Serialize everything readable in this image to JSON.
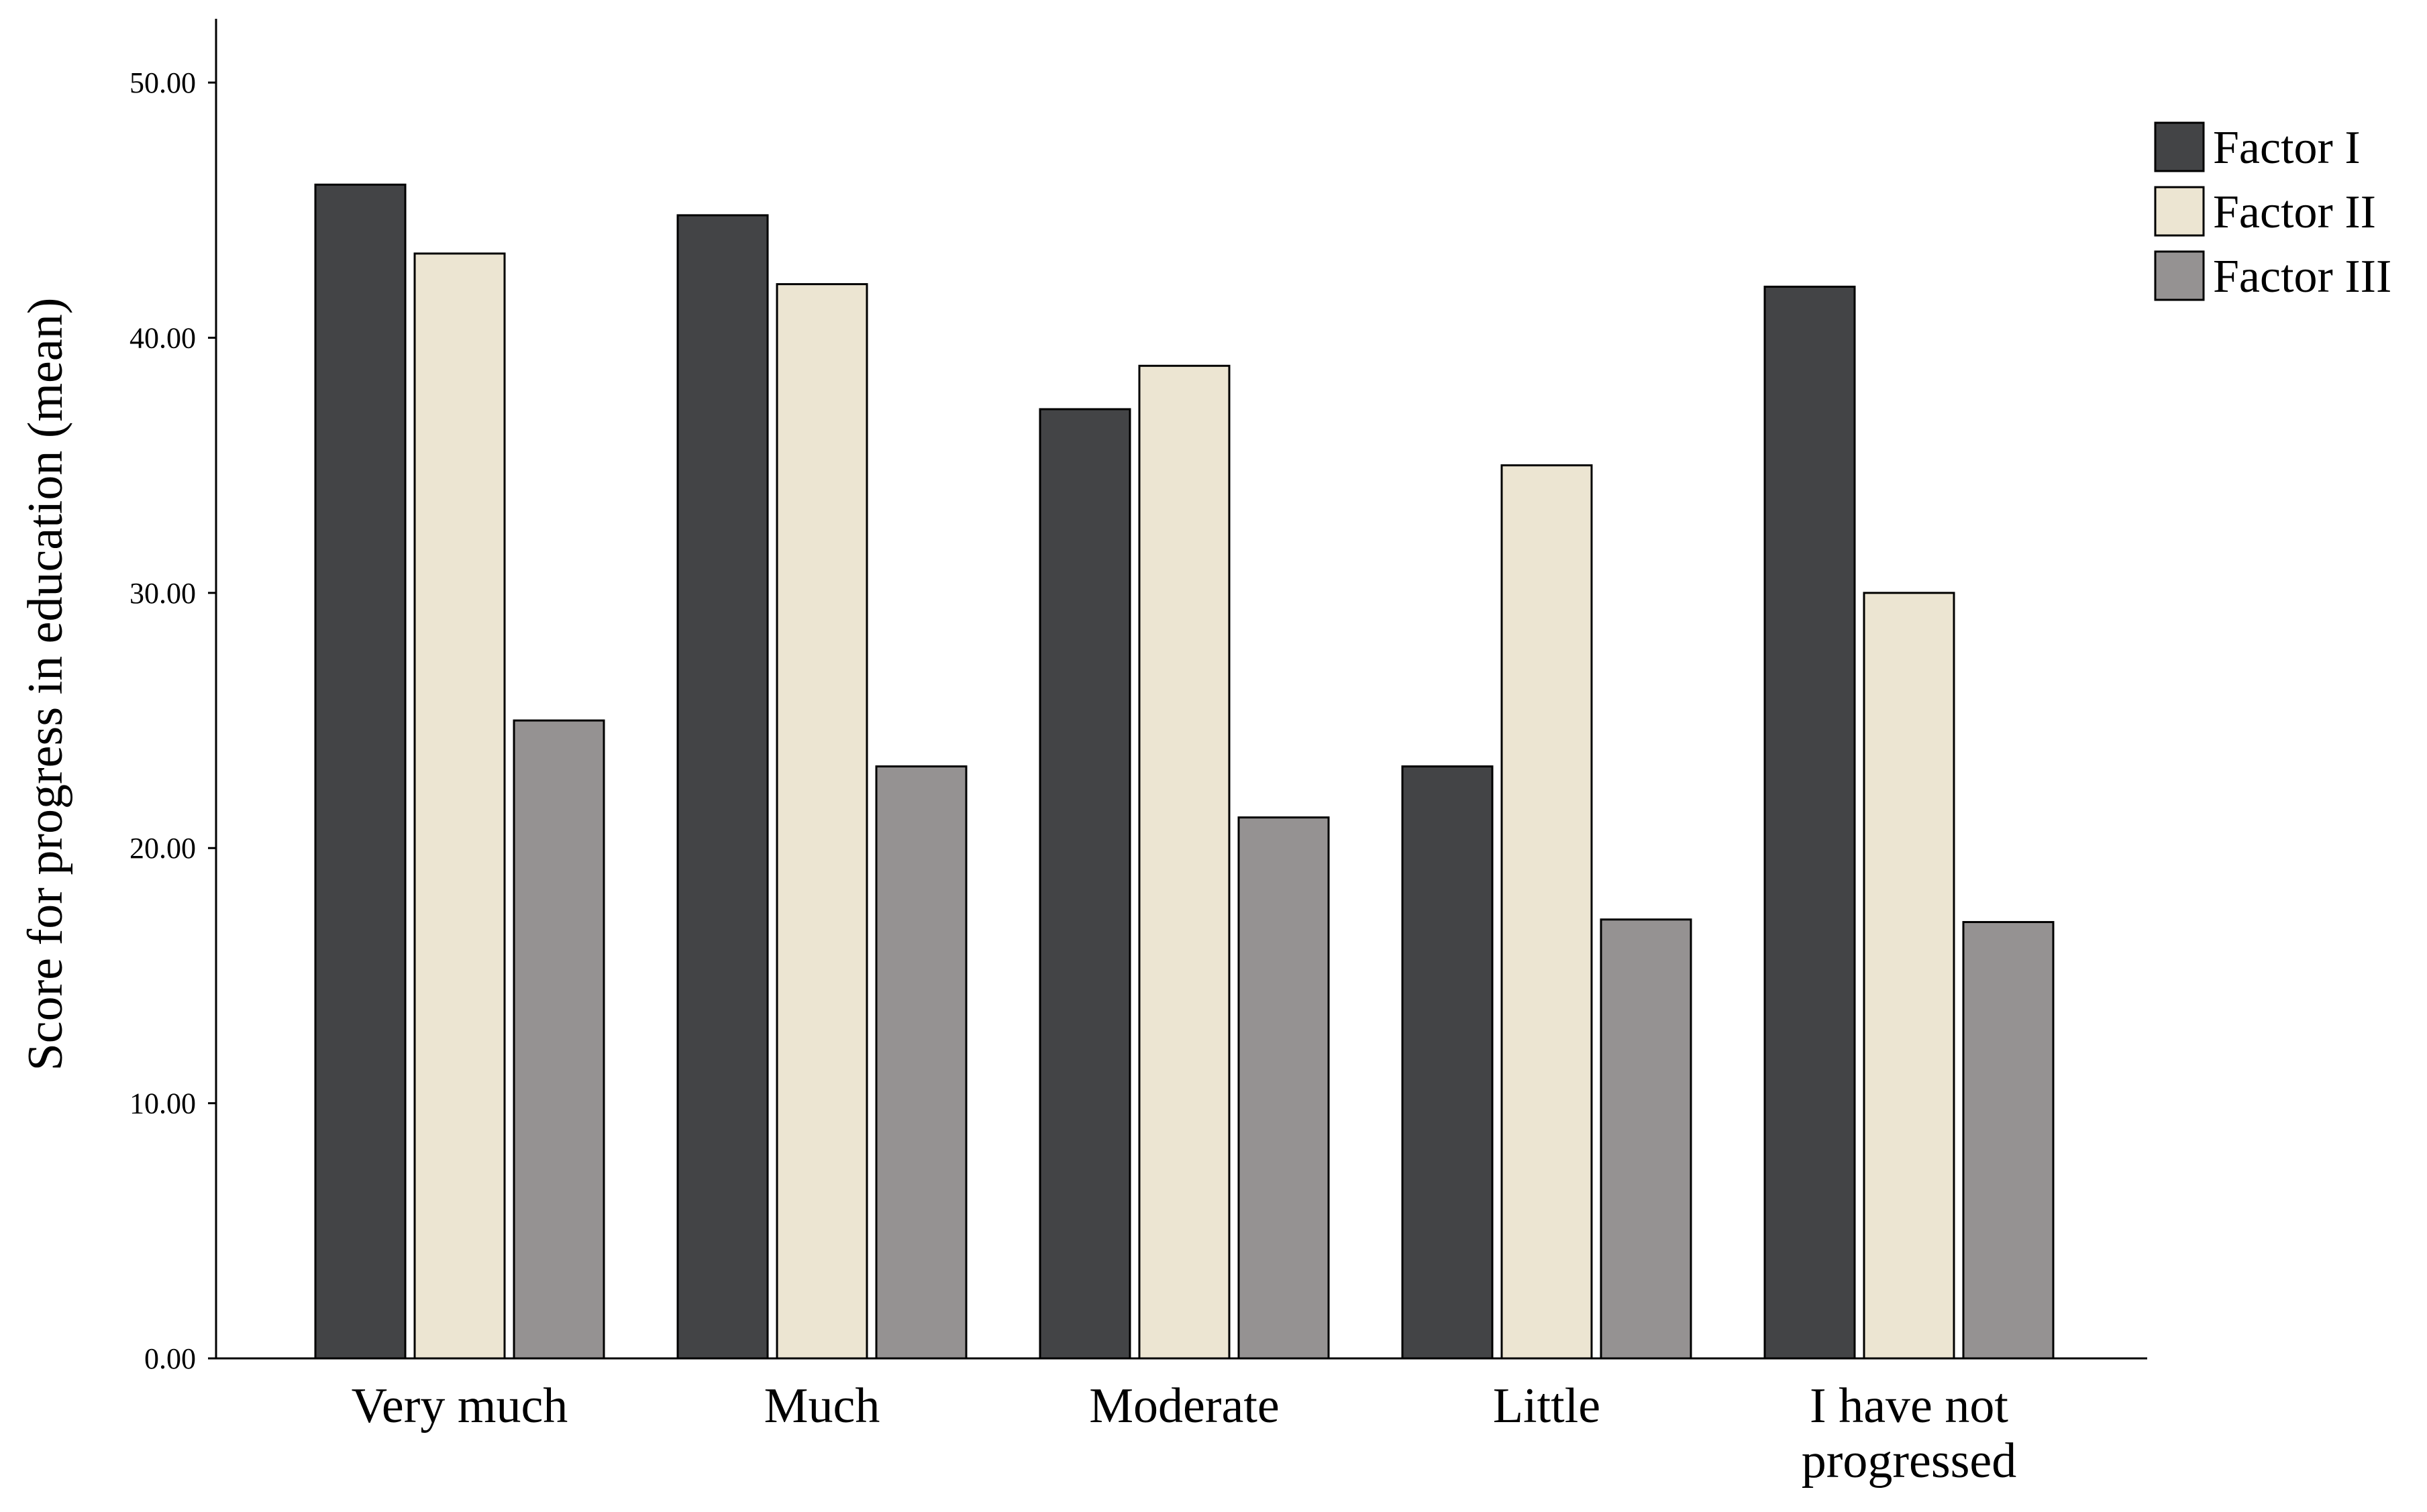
{
  "chart_data": {
    "type": "bar",
    "title": "",
    "xlabel": "",
    "ylabel": "Score for progress in education (mean)",
    "ylim": [
      0,
      52.5
    ],
    "yticks": [
      0,
      10,
      20,
      30,
      40,
      50
    ],
    "ytick_labels": [
      "0.00",
      "10.00",
      "20.00",
      "30.00",
      "40.00",
      "50.00"
    ],
    "categories": [
      "Very much",
      "Much",
      "Moderate",
      "Little",
      "I have not progressed"
    ],
    "category_lines": [
      [
        "Very much"
      ],
      [
        "Much"
      ],
      [
        "Moderate"
      ],
      [
        "Little"
      ],
      [
        "I have not",
        "progressed"
      ]
    ],
    "series": [
      {
        "name": "Factor I",
        "color": "#434446",
        "values": [
          46.0,
          44.8,
          37.2,
          23.2,
          42.0
        ]
      },
      {
        "name": "Factor II",
        "color": "#ece5d2",
        "values": [
          43.3,
          42.1,
          38.9,
          35.0,
          30.0
        ]
      },
      {
        "name": "Factor III",
        "color": "#959292",
        "values": [
          25.0,
          23.2,
          21.2,
          17.2,
          17.1
        ]
      }
    ],
    "legend_position": "top-right",
    "grid": false
  }
}
